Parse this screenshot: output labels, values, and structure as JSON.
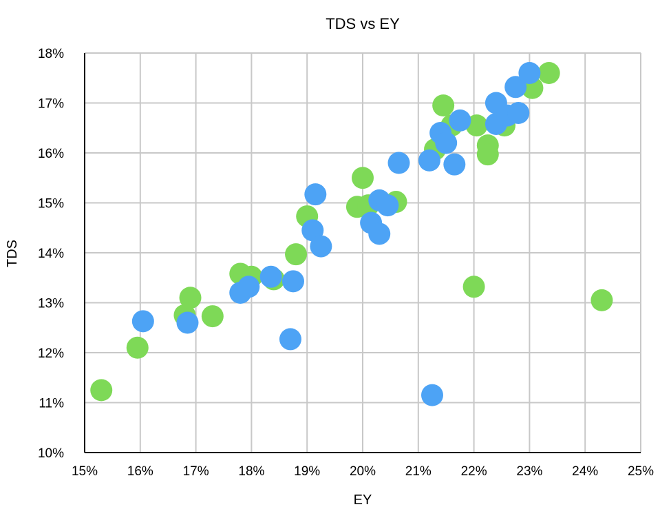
{
  "chart_data": {
    "type": "scatter",
    "title": "TDS vs EY",
    "xlabel": "EY",
    "ylabel": "TDS",
    "xlim": [
      15,
      25
    ],
    "ylim": [
      10,
      18
    ],
    "x_ticks": [
      15,
      16,
      17,
      18,
      19,
      20,
      21,
      22,
      23,
      24,
      25
    ],
    "y_ticks": [
      10,
      11,
      12,
      13,
      14,
      15,
      16,
      17,
      18
    ],
    "x_tick_labels": [
      "15%",
      "16%",
      "17%",
      "18%",
      "19%",
      "20%",
      "21%",
      "22%",
      "23%",
      "24%",
      "25%"
    ],
    "y_tick_labels": [
      "10%",
      "11%",
      "12%",
      "13%",
      "14%",
      "15%",
      "16%",
      "17%",
      "18%"
    ],
    "grid": true,
    "series": [
      {
        "color": "#7ed957",
        "points": [
          {
            "x": 15.3,
            "y": 11.25
          },
          {
            "x": 15.95,
            "y": 12.1
          },
          {
            "x": 16.8,
            "y": 12.75
          },
          {
            "x": 16.9,
            "y": 13.1
          },
          {
            "x": 17.3,
            "y": 12.73
          },
          {
            "x": 17.8,
            "y": 13.58
          },
          {
            "x": 18.0,
            "y": 13.52
          },
          {
            "x": 18.4,
            "y": 13.47
          },
          {
            "x": 18.8,
            "y": 13.97
          },
          {
            "x": 19.0,
            "y": 14.73
          },
          {
            "x": 19.9,
            "y": 14.92
          },
          {
            "x": 20.0,
            "y": 15.5
          },
          {
            "x": 20.1,
            "y": 14.95
          },
          {
            "x": 20.6,
            "y": 15.02
          },
          {
            "x": 21.3,
            "y": 16.07
          },
          {
            "x": 21.45,
            "y": 16.95
          },
          {
            "x": 21.6,
            "y": 16.55
          },
          {
            "x": 22.0,
            "y": 13.32
          },
          {
            "x": 22.05,
            "y": 16.55
          },
          {
            "x": 22.25,
            "y": 16.15
          },
          {
            "x": 22.25,
            "y": 15.97
          },
          {
            "x": 22.55,
            "y": 16.55
          },
          {
            "x": 23.05,
            "y": 17.3
          },
          {
            "x": 23.35,
            "y": 17.6
          },
          {
            "x": 24.3,
            "y": 13.05
          }
        ]
      },
      {
        "color": "#4da3f5",
        "points": [
          {
            "x": 16.05,
            "y": 12.63
          },
          {
            "x": 16.85,
            "y": 12.6
          },
          {
            "x": 17.8,
            "y": 13.2
          },
          {
            "x": 17.95,
            "y": 13.32
          },
          {
            "x": 18.35,
            "y": 13.52
          },
          {
            "x": 18.75,
            "y": 13.43
          },
          {
            "x": 18.7,
            "y": 12.27
          },
          {
            "x": 19.1,
            "y": 14.45
          },
          {
            "x": 19.15,
            "y": 15.17
          },
          {
            "x": 19.25,
            "y": 14.13
          },
          {
            "x": 20.15,
            "y": 14.6
          },
          {
            "x": 20.3,
            "y": 14.38
          },
          {
            "x": 20.3,
            "y": 15.05
          },
          {
            "x": 20.45,
            "y": 14.95
          },
          {
            "x": 20.65,
            "y": 15.8
          },
          {
            "x": 21.2,
            "y": 15.85
          },
          {
            "x": 21.25,
            "y": 11.15
          },
          {
            "x": 21.4,
            "y": 16.4
          },
          {
            "x": 21.5,
            "y": 16.2
          },
          {
            "x": 21.65,
            "y": 15.77
          },
          {
            "x": 21.75,
            "y": 16.65
          },
          {
            "x": 22.4,
            "y": 16.58
          },
          {
            "x": 22.4,
            "y": 17.0
          },
          {
            "x": 22.6,
            "y": 16.75
          },
          {
            "x": 22.8,
            "y": 16.8
          },
          {
            "x": 22.75,
            "y": 17.32
          },
          {
            "x": 23.0,
            "y": 17.6
          }
        ]
      }
    ]
  }
}
